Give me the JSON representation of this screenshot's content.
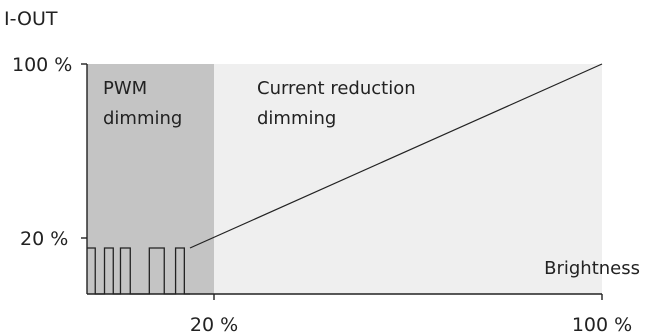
{
  "colors": {
    "pwm_region": "#c4c4c4",
    "current_region": "#efefef",
    "ink": "#222222"
  },
  "y_axis": {
    "label": "I-OUT",
    "ticks": [
      {
        "value": 100,
        "label": "100 %"
      },
      {
        "value": 20,
        "label": "20 %"
      }
    ]
  },
  "x_axis": {
    "label": "Brightness",
    "ticks": [
      {
        "value": 20,
        "label": "20 %"
      },
      {
        "value": 100,
        "label": "100 %"
      }
    ]
  },
  "regions": {
    "pwm": {
      "line1": "PWM",
      "line2": "dimming",
      "from": 0,
      "to": 20
    },
    "current": {
      "line1": "Current reduction",
      "line2": "dimming",
      "from": 20,
      "to": 100
    }
  },
  "ramp": {
    "from": {
      "brightness": 20,
      "current": 20
    },
    "to": {
      "brightness": 100,
      "current": 100
    }
  },
  "pwm_wave": {
    "pulse_edges": [
      0,
      1.6,
      3.4,
      5.1,
      6.5,
      8.4,
      12.1,
      15.0,
      17.2,
      18.9,
      20.0
    ]
  }
}
